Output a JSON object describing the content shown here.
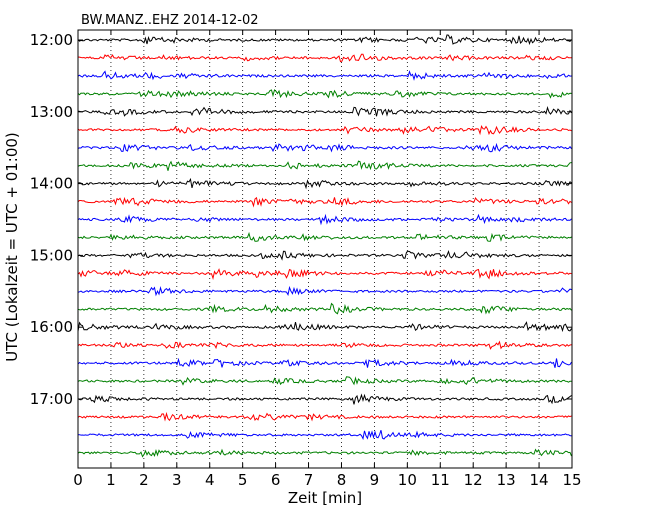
{
  "chart_data": {
    "type": "line",
    "title": "BW.MANZ..EHZ 2014-12-02",
    "xlabel": "Zeit  [min]",
    "ylabel": "UTC (Lokalzeit = UTC + 01:00)",
    "xlim": [
      0,
      15
    ],
    "x_ticks": [
      "0",
      "1",
      "2",
      "3",
      "4",
      "5",
      "6",
      "7",
      "8",
      "9",
      "10",
      "11",
      "12",
      "13",
      "14",
      "15"
    ],
    "y_ticks": [
      "12:00",
      "13:00",
      "14:00",
      "15:00",
      "16:00",
      "17:00"
    ],
    "rows_per_hour": 4,
    "row_count": 24,
    "start_hour": 12,
    "vertical_grid": "dotted",
    "series_colors": [
      "#000000",
      "#ff0000",
      "#0000ff",
      "#008000"
    ]
  }
}
